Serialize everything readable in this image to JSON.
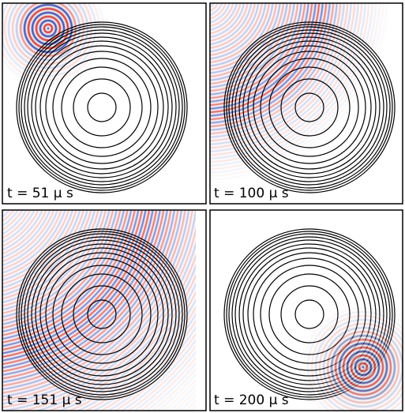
{
  "panels": [
    {
      "label": "t = 51 μ s"
    },
    {
      "label": "t = 100 μ s"
    },
    {
      "label": "t = 151 μ s"
    },
    {
      "label": "t = 200 μ s"
    }
  ]
}
